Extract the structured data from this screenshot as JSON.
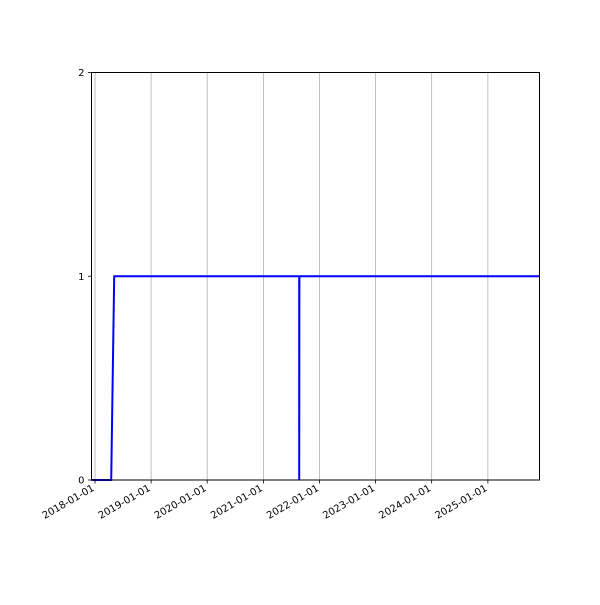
{
  "chart_data": {
    "type": "line",
    "title": "",
    "xlabel": "",
    "ylabel": "",
    "xlim": [
      "2017-12-09",
      "2025-12-03"
    ],
    "ylim": [
      0,
      2
    ],
    "grid": "vertical",
    "x_ticks": [
      "2018-01-01",
      "2019-01-01",
      "2020-01-01",
      "2021-01-01",
      "2022-01-01",
      "2023-01-01",
      "2024-01-01",
      "2025-01-01"
    ],
    "y_ticks": [
      0,
      1,
      2
    ],
    "series": [
      {
        "color": "#0000ff",
        "points": [
          [
            "2017-12-09",
            0
          ],
          [
            "2018-04-16",
            0
          ],
          [
            "2018-05-06",
            1
          ],
          [
            "2021-08-22",
            1
          ],
          [
            "2021-08-22",
            0
          ],
          [
            "2021-08-23",
            1
          ],
          [
            "2025-12-03",
            1
          ]
        ]
      }
    ]
  }
}
